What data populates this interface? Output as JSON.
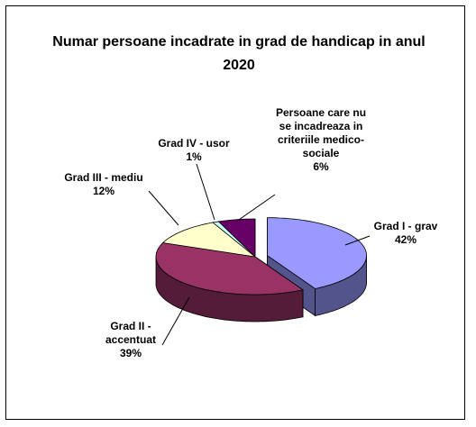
{
  "chart_data": {
    "type": "pie3d",
    "title": "Numar persoane incadrate in grad de handicap in anul 2020",
    "categories": [
      "Grad I - grav",
      "Grad II - accentuat",
      "Grad III - mediu",
      "Grad IV - usor",
      "Persoane care nu se incadreaza in criteriile medico-sociale"
    ],
    "values": [
      42,
      39,
      12,
      1,
      6
    ],
    "value_labels": [
      "42%",
      "39%",
      "12%",
      "1%",
      "6%"
    ],
    "colors": [
      "#9999ff",
      "#993366",
      "#ffffcc",
      "#ccffff",
      "#660066"
    ]
  }
}
